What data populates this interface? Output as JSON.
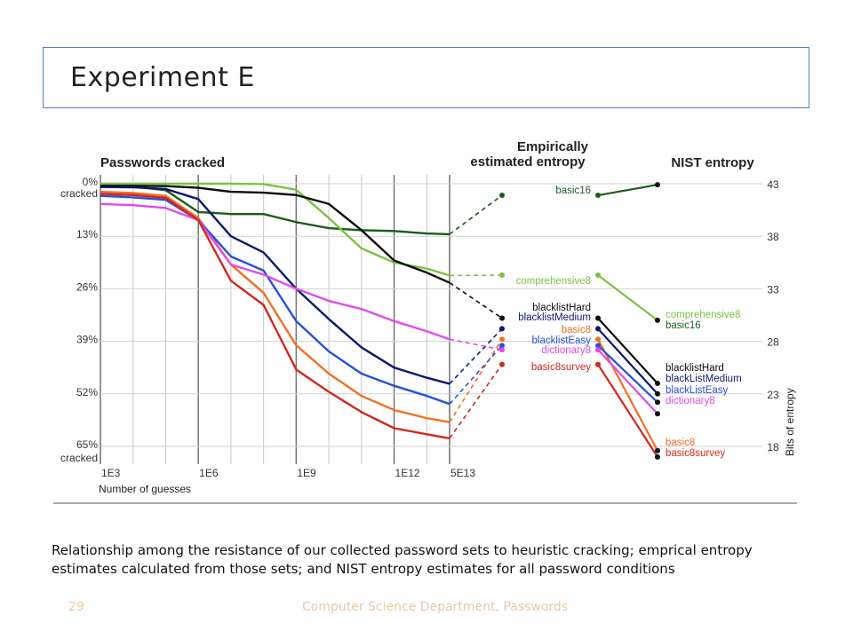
{
  "slide": {
    "title": "Experiment E",
    "caption": "Relationship among the resistance of our collected password sets to heuristic cracking; emprical entropy estimates calculated from those sets; and NIST entropy estimates for all password conditions",
    "page_number": "29",
    "footer": "Computer Science Department, Passwords"
  },
  "chart_data": {
    "type": "line",
    "panels": {
      "cracked": "Passwords cracked",
      "empirical_line1": "Empirically",
      "empirical_line2": "estimated entropy",
      "nist": "NIST entropy"
    },
    "xlabel": "Number of guesses",
    "x_ticks": [
      "1E3",
      "1E6",
      "1E9",
      "1E12",
      "5E13"
    ],
    "x_tick_values": [
      3,
      6,
      9,
      12,
      13.7
    ],
    "xlim": [
      3,
      13.7
    ],
    "y_ticks_left": [
      "0%",
      "13%",
      "26%",
      "39%",
      "52%",
      "65%"
    ],
    "y_tick_values_left": [
      0,
      13,
      26,
      39,
      52,
      65
    ],
    "y_left_extra": [
      "cracked",
      "cracked"
    ],
    "ylim_left": [
      0,
      65
    ],
    "ylabel_right": "Bits of entropy",
    "y_ticks_right": [
      "43",
      "38",
      "33",
      "28",
      "23",
      "18"
    ],
    "y_tick_values_right": [
      43,
      38,
      33,
      28,
      23,
      18
    ],
    "ylim_right": [
      18,
      43
    ],
    "x": [
      3,
      4,
      5,
      6,
      7,
      8,
      9,
      10,
      11,
      12,
      13,
      13.7
    ],
    "series": [
      {
        "name": "basic16",
        "color": "#1e5a1e",
        "cracked": [
          0.5,
          0.7,
          1.6,
          7,
          7.5,
          7.5,
          9.5,
          11,
          11.5,
          11.7,
          12.3,
          12.5
        ],
        "empirical": 41.9,
        "nist": 42.9,
        "nist_label": "basic16",
        "emp_label": "basic16"
      },
      {
        "name": "comprehensive8",
        "color": "#7cc242",
        "cracked": [
          0,
          0,
          0,
          0,
          0,
          0.1,
          1.5,
          8.5,
          16,
          19.5,
          21,
          22.7
        ],
        "empirical": 34.3,
        "nist": 30.0,
        "nist_label": "comprehensive8",
        "emp_label": "comprehensive8"
      },
      {
        "name": "blacklistHard",
        "color": "#0d0d0d",
        "cracked": [
          0.5,
          0.5,
          0.6,
          1,
          2,
          2.2,
          2.8,
          5,
          11.5,
          19,
          22,
          24.5
        ],
        "empirical": 30.2,
        "nist": 24.0,
        "nist_label": "blacklistHard",
        "emp_label": "blacklistHard"
      },
      {
        "name": "blacklistMedium",
        "color": "#0a1a6e",
        "cracked": [
          0.8,
          0.9,
          1.3,
          3.8,
          13,
          17,
          26,
          33.5,
          40.5,
          45.5,
          48,
          49.5
        ],
        "empirical": 29.2,
        "nist": 23.0,
        "nist_label": "blackListMedium",
        "emp_label": "blacklistMedium"
      },
      {
        "name": "basic8",
        "color": "#f27021",
        "cracked": [
          2,
          2.3,
          3,
          8.5,
          20,
          27,
          40,
          47,
          52.5,
          56,
          58,
          59
        ],
        "empirical": 28.2,
        "nist": 17.6,
        "nist_label": "basic8",
        "emp_label": "basic8"
      },
      {
        "name": "blacklistEasy",
        "color": "#2850d8",
        "cracked": [
          3,
          3.4,
          4,
          9,
          18,
          21.5,
          34,
          41.5,
          47,
          50,
          52.5,
          54.5
        ],
        "empirical": 27.6,
        "nist": 22.2,
        "nist_label": "blackListEasy",
        "emp_label": "blacklistEasy"
      },
      {
        "name": "dictionary8",
        "color": "#e24be6",
        "cracked": [
          5,
          5.3,
          6,
          9,
          20,
          22.5,
          26,
          29,
          31,
          34,
          36.5,
          38.5
        ],
        "empirical": 27.2,
        "nist": 21.1,
        "nist_label": "dictionary8",
        "emp_label": "dictionary8"
      },
      {
        "name": "basic8survey",
        "color": "#d0281f",
        "cracked": [
          2.5,
          2.8,
          3.5,
          9,
          24,
          30,
          46,
          51.5,
          56.5,
          60.5,
          62,
          63
        ],
        "empirical": 25.8,
        "nist": 17.0,
        "nist_label": "basic8survey",
        "emp_label": "basic8survey"
      }
    ]
  }
}
